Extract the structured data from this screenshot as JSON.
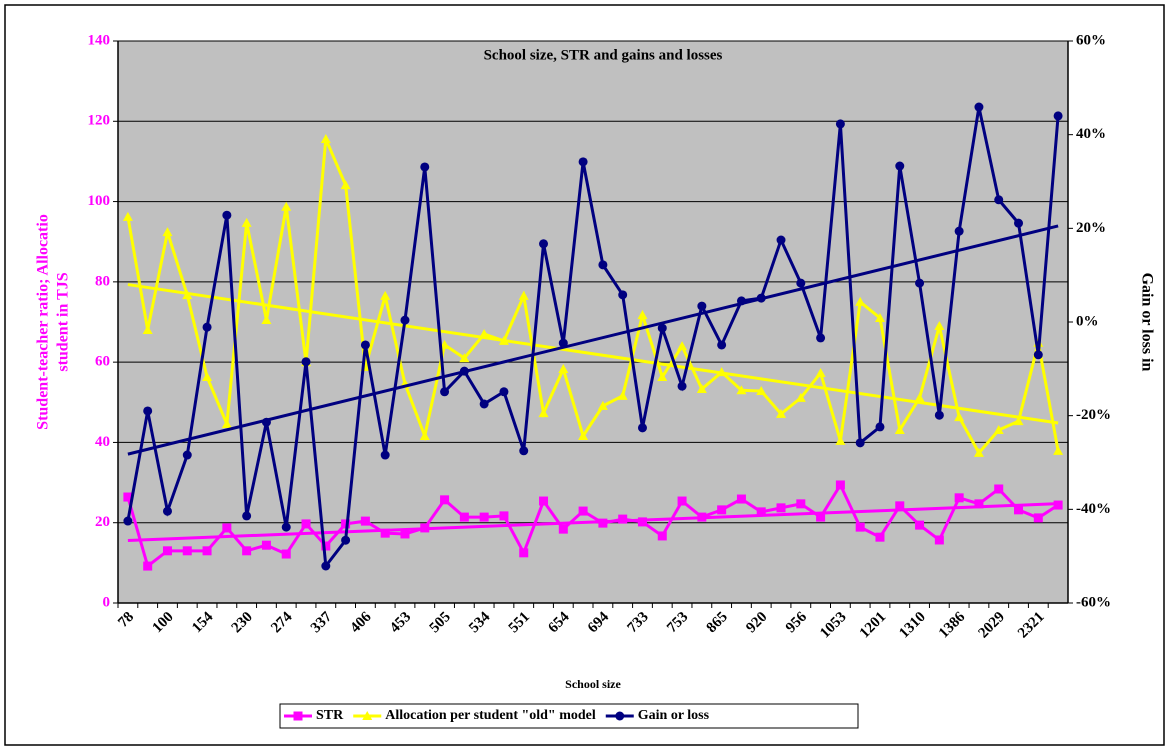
{
  "chart_data": {
    "type": "line",
    "title": "School size, STR and gains and losses",
    "xlabel": "School size",
    "ylabel": [
      "Student-teacher ratio; Allocatio",
      "student in TJS"
    ],
    "y2label": "Gain or loss in",
    "categories": [
      "78",
      null,
      "100",
      null,
      "154",
      null,
      "230",
      null,
      "274",
      null,
      "337",
      null,
      "406",
      null,
      "453",
      null,
      "505",
      null,
      "534",
      null,
      "551",
      null,
      "654",
      null,
      "694",
      null,
      "733",
      null,
      "753",
      null,
      "865",
      null,
      "920",
      null,
      "956",
      null,
      "1053",
      null,
      "1201",
      null,
      "1310",
      null,
      "1386",
      null,
      "2029",
      null,
      "2321",
      null
    ],
    "ylim": [
      0,
      140
    ],
    "yticks": [
      0,
      20,
      40,
      60,
      80,
      100,
      120,
      140
    ],
    "y2lim": [
      -60,
      60
    ],
    "y2ticks": [
      {
        "value": -60,
        "label": "-60%"
      },
      {
        "value": -40,
        "label": "-40%"
      },
      {
        "value": -20,
        "label": "-20%"
      },
      {
        "value": 0,
        "label": "0%"
      },
      {
        "value": 20,
        "label": "20%"
      },
      {
        "value": 40,
        "label": "40%"
      },
      {
        "value": 60,
        "label": "60%"
      }
    ],
    "grid": true,
    "legend": "bottom",
    "series": [
      {
        "name": "STR",
        "color": "#ff00ff",
        "marker": "square",
        "trendline": true,
        "values": [
          26.4,
          9.2,
          13,
          13,
          13,
          18.7,
          13,
          14.4,
          12.2,
          19.7,
          14.2,
          19.7,
          20.4,
          17.4,
          17.2,
          18.7,
          25.7,
          21.4,
          21.4,
          21.7,
          12.5,
          25.4,
          18.4,
          22.9,
          19.9,
          20.9,
          20.2,
          16.7,
          25.4,
          21.4,
          23.2,
          25.9,
          22.7,
          23.7,
          24.7,
          21.4,
          29.4,
          18.9,
          16.4,
          24.2,
          19.4,
          15.7,
          26.2,
          24.7,
          28.4,
          23.2,
          21.2,
          24.4
        ]
      },
      {
        "name": "Allocation per student \"old\" model",
        "color": "#ffff00",
        "marker": "triangle",
        "trendline": true,
        "values": [
          96.2,
          68,
          92.4,
          76.7,
          56.3,
          44.6,
          94.7,
          70.5,
          98.7,
          60,
          115.6,
          104.1,
          58.8,
          76.5,
          54.6,
          41.6,
          64.3,
          61,
          67,
          65.3,
          76.5,
          47.3,
          58.3,
          41.6,
          49.1,
          51.6,
          71.7,
          56.3,
          64,
          53.3,
          57.5,
          53,
          52.8,
          47.1,
          51.1,
          57.3,
          40.4,
          75,
          71,
          43.1,
          51.1,
          69,
          46.3,
          37.4,
          43.1,
          45.3,
          64.8,
          37.9
        ]
      },
      {
        "name": "Gain or loss",
        "color": "#000080",
        "marker": "circle",
        "trendline": true,
        "axis": "y2",
        "values": [
          -42.5,
          -19,
          -40.4,
          -28.4,
          -1.1,
          22.8,
          -41.4,
          -21.4,
          -43.8,
          -8.5,
          -52.1,
          -46.6,
          -4.9,
          -28.4,
          0.4,
          33.1,
          -14.9,
          -10.5,
          -17.5,
          -14.9,
          -27.5,
          16.7,
          -4.5,
          34.2,
          12.2,
          5.8,
          -22.6,
          -1.3,
          -13.7,
          3.4,
          -4.9,
          4.5,
          5.1,
          17.5,
          8.3,
          -3.4,
          42.3,
          -25.8,
          -22.4,
          33.3,
          8.3,
          -19.9,
          19.4,
          45.9,
          26.1,
          21.1,
          -7,
          44
        ]
      }
    ]
  }
}
